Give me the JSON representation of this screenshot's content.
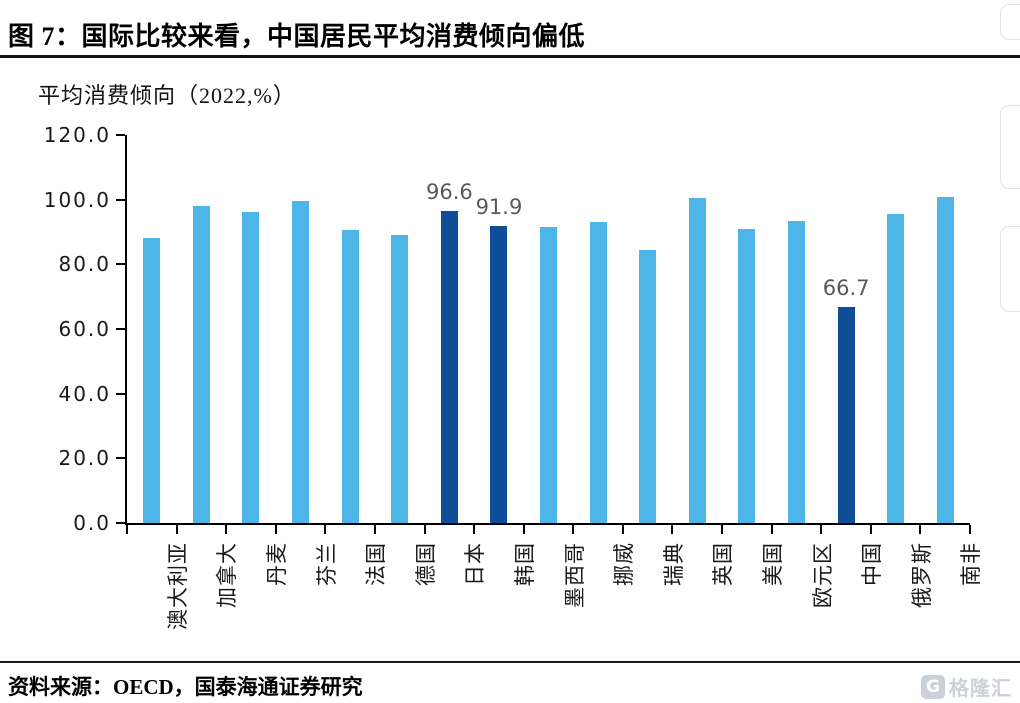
{
  "page": {
    "title": "图 7：国际比较来看，中国居民平均消费倾向偏低",
    "source": "资料来源：OECD，国泰海通证券研究",
    "watermark": {
      "icon": "G",
      "text": "格隆汇"
    }
  },
  "chart_data": {
    "type": "bar",
    "title": "平均消费倾向（2022,%）",
    "categories": [
      "澳大利亚",
      "加拿大",
      "丹麦",
      "芬兰",
      "法国",
      "德国",
      "日本",
      "韩国",
      "墨西哥",
      "挪威",
      "瑞典",
      "英国",
      "美国",
      "欧元区",
      "中国",
      "俄罗斯",
      "南非"
    ],
    "values": [
      88.0,
      98.0,
      96.2,
      99.5,
      90.5,
      89.0,
      96.6,
      91.9,
      91.5,
      93.0,
      84.5,
      100.4,
      91.0,
      93.5,
      66.7,
      95.5,
      100.8
    ],
    "highlight_indexes": [
      6,
      7,
      14
    ],
    "value_labels": {
      "6": "96.6",
      "7": "91.9",
      "14": "66.7"
    },
    "bar_color": "#4eb5e8",
    "highlight_color": "#0f4d98",
    "label_color": "#595959",
    "xlabel": "",
    "ylabel": "",
    "ylim": [
      0,
      120
    ],
    "yticks": [
      "0.0",
      "20.0",
      "40.0",
      "60.0",
      "80.0",
      "100.0",
      "120.0"
    ],
    "grid": false,
    "legend": "none"
  }
}
